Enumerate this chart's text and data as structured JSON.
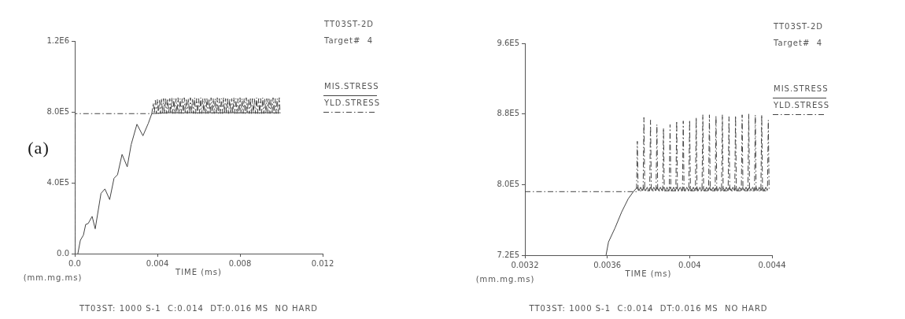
{
  "chart_data": [
    {
      "type": "line",
      "title": "TT03ST-2D",
      "subtitle": "Target#  4",
      "xlabel": "TIME (ms)",
      "annotations": [
        "(mm.mg.ms)",
        "TT03ST: 1000 S-1  C:0.014  DT:0.016 MS  NO HARD",
        "(a)"
      ],
      "xlim": [
        0,
        0.012
      ],
      "xticks": [
        {
          "value": 0,
          "label": "0.0"
        },
        0.004,
        0.008,
        0.012
      ],
      "ylim": [
        0,
        1200000
      ],
      "yticks": [
        {
          "value": 0,
          "label": "0.0"
        },
        {
          "value": 400000,
          "label": "4.0E5"
        },
        {
          "value": 800000,
          "label": "8.0E5"
        },
        {
          "value": 1200000,
          "label": "1.2E6"
        }
      ],
      "legend": "top right",
      "marker": "none",
      "series": [
        {
          "name": "MIS.STRESS",
          "color": "#444444",
          "line_style": "solid",
          "x": [
            0.00015,
            0.00027,
            0.00042,
            0.00053,
            0.00065,
            0.00084,
            0.00099,
            0.00127,
            0.00146,
            0.00169,
            0.0019,
            0.00207,
            0.00229,
            0.00254,
            0.00273,
            0.00301,
            0.0033,
            0.00356,
            0.00373,
            0.0045,
            0.0055,
            0.0065,
            0.0075,
            0.0085,
            0.0099
          ],
          "values": [
            0,
            75000,
            105000,
            165000,
            170000,
            210000,
            140000,
            340000,
            365000,
            305000,
            425000,
            445000,
            560000,
            490000,
            615000,
            730000,
            665000,
            735000,
            790000,
            795000,
            795000,
            795000,
            795000,
            795000,
            795000
          ]
        },
        {
          "name": "YLD.STRESS",
          "color": "#444444",
          "line_style": "dashed",
          "x": [
            0,
            0,
            0.00373,
            0.0038,
            0.00385,
            0.0039,
            0.00395,
            0.004,
            0.00405,
            0.0041,
            0.00415,
            0.0042,
            0.00425,
            0.0043,
            0.00435,
            0.0044,
            0.00445,
            0.0045,
            0.00455,
            0.0046,
            0.00465,
            0.0047,
            0.00475,
            0.0048,
            0.00485,
            0.0049,
            0.00495,
            0.005,
            0.00505,
            0.0051,
            0.00515,
            0.0052,
            0.00525,
            0.0053,
            0.00535,
            0.0054,
            0.00545,
            0.0055,
            0.00555,
            0.0056,
            0.00565,
            0.0057,
            0.00575,
            0.0058,
            0.00585,
            0.0059,
            0.00595,
            0.006,
            0.00605,
            0.0061,
            0.00615,
            0.0062,
            0.00625,
            0.0063,
            0.00635,
            0.0064,
            0.00645,
            0.0065,
            0.00655,
            0.0066,
            0.00665,
            0.0067,
            0.00675,
            0.0068,
            0.00685,
            0.0069,
            0.00695,
            0.007,
            0.00705,
            0.0071,
            0.00715,
            0.0072,
            0.00725,
            0.0073,
            0.00735,
            0.0074,
            0.00745,
            0.0075,
            0.00755,
            0.0076,
            0.00765,
            0.0077,
            0.00775,
            0.0078,
            0.00785,
            0.0079,
            0.00795,
            0.008,
            0.00805,
            0.0081,
            0.00815,
            0.0082,
            0.00825,
            0.0083,
            0.00835,
            0.0084,
            0.00845,
            0.0085,
            0.00855,
            0.0086,
            0.00865,
            0.0087,
            0.00875,
            0.0088,
            0.00885,
            0.0089,
            0.00895,
            0.009,
            0.00905,
            0.0091,
            0.00915,
            0.0092,
            0.00925,
            0.0093,
            0.00935,
            0.0094,
            0.00945,
            0.0095,
            0.00955,
            0.0096,
            0.00965,
            0.0097,
            0.00975,
            0.0098,
            0.00985,
            0.0099,
            0.00994
          ],
          "values": [
            0,
            790000,
            790000,
            850000,
            790000,
            865000,
            790000,
            870000,
            790000,
            870000,
            790000,
            875000,
            790000,
            875000,
            790000,
            880000,
            790000,
            875000,
            790000,
            875000,
            790000,
            880000,
            790000,
            875000,
            790000,
            875000,
            790000,
            880000,
            790000,
            875000,
            790000,
            875000,
            790000,
            880000,
            790000,
            875000,
            790000,
            875000,
            790000,
            880000,
            790000,
            875000,
            790000,
            880000,
            790000,
            875000,
            790000,
            875000,
            790000,
            880000,
            790000,
            875000,
            790000,
            875000,
            790000,
            880000,
            790000,
            875000,
            790000,
            880000,
            790000,
            875000,
            790000,
            875000,
            790000,
            880000,
            790000,
            875000,
            790000,
            875000,
            790000,
            880000,
            790000,
            875000,
            790000,
            880000,
            790000,
            875000,
            790000,
            875000,
            790000,
            880000,
            790000,
            875000,
            790000,
            875000,
            790000,
            880000,
            790000,
            875000,
            790000,
            875000,
            790000,
            880000,
            790000,
            875000,
            790000,
            880000,
            790000,
            875000,
            790000,
            875000,
            790000,
            880000,
            790000,
            875000,
            790000,
            875000,
            790000,
            880000,
            790000,
            875000,
            790000,
            875000,
            790000,
            880000,
            790000,
            875000,
            790000,
            880000,
            790000,
            875000,
            790000,
            875000,
            790000,
            880000,
            790000
          ]
        }
      ]
    },
    {
      "type": "line",
      "title": "TT03ST-2D",
      "subtitle": "Target#  4",
      "xlabel": "TIME (ms)",
      "annotations": [
        "(mm.mg.ms)",
        "TT03ST: 1000 S-1  C:0.014  DT:0.016 MS  NO HARD"
      ],
      "xlim": [
        0.0032,
        0.0044
      ],
      "xticks": [
        0.0032,
        0.0036,
        0.004,
        0.0044
      ],
      "ylim": [
        720000,
        960000
      ],
      "yticks": [
        {
          "value": 720000,
          "label": "7.2E5"
        },
        {
          "value": 800000,
          "label": "8.0E5"
        },
        {
          "value": 880000,
          "label": "8.8E5"
        },
        {
          "value": 960000,
          "label": "9.6E5"
        }
      ],
      "legend": "top right",
      "marker": "none",
      "series": [
        {
          "name": "MIS.STRESS",
          "color": "#444444",
          "line_style": "solid",
          "x": [
            0.003594,
            0.003606,
            0.003638,
            0.00367,
            0.003702,
            0.003727,
            0.003746,
            0.003754,
            0.003762,
            0.00377,
            0.003778,
            0.003786,
            0.003794,
            0.003802,
            0.00381,
            0.003818,
            0.003826,
            0.003834,
            0.003842,
            0.00385,
            0.003858,
            0.003866,
            0.003874,
            0.003882,
            0.00389,
            0.003898,
            0.003906,
            0.003914,
            0.003922,
            0.00393,
            0.003938,
            0.003946,
            0.003954,
            0.003962,
            0.00397,
            0.003978,
            0.003986,
            0.003994,
            0.004002,
            0.00401,
            0.004018,
            0.004026,
            0.004034,
            0.004042,
            0.00405,
            0.004058,
            0.004066,
            0.004074,
            0.004082,
            0.00409,
            0.004098,
            0.004106,
            0.004114,
            0.004122,
            0.00413,
            0.004138,
            0.004146,
            0.004154,
            0.004162,
            0.00417,
            0.004178,
            0.004186,
            0.004194,
            0.004202,
            0.00421,
            0.004218,
            0.004226,
            0.004234,
            0.004242,
            0.00425,
            0.004258,
            0.004266,
            0.004274,
            0.004282,
            0.00429,
            0.004298,
            0.004306,
            0.004314,
            0.004322,
            0.00433,
            0.004338,
            0.004346,
            0.004354,
            0.004362,
            0.00437,
            0.004378
          ],
          "values": [
            720000,
            735000,
            751000,
            769000,
            784000,
            792000,
            797000,
            793000,
            797000,
            793000,
            797000,
            793000,
            797000,
            793000,
            797000,
            793000,
            797000,
            793000,
            797000,
            793000,
            797000,
            793000,
            797000,
            793000,
            797000,
            793000,
            797000,
            793000,
            797000,
            793000,
            797000,
            793000,
            797000,
            793000,
            797000,
            793000,
            797000,
            793000,
            797000,
            793000,
            797000,
            793000,
            797000,
            793000,
            797000,
            793000,
            797000,
            793000,
            797000,
            793000,
            797000,
            793000,
            797000,
            793000,
            797000,
            793000,
            797000,
            793000,
            797000,
            793000,
            797000,
            793000,
            797000,
            793000,
            797000,
            793000,
            797000,
            793000,
            797000,
            793000,
            797000,
            793000,
            797000,
            793000,
            797000,
            793000,
            797000,
            793000,
            797000,
            793000,
            797000,
            793000,
            797000,
            793000,
            797000,
            793000
          ]
        },
        {
          "name": "YLD.STRESS",
          "color": "#444444",
          "line_style": "dashed",
          "x": [
            0.0032,
            0.003742,
            0.003746,
            0.00375,
            0.003774,
            0.003778,
            0.003782,
            0.003806,
            0.00381,
            0.003814,
            0.003837,
            0.003841,
            0.003845,
            0.003869,
            0.003873,
            0.003877,
            0.003901,
            0.003905,
            0.003909,
            0.003933,
            0.003937,
            0.003941,
            0.003965,
            0.003969,
            0.003973,
            0.003996,
            0.004,
            0.004004,
            0.004028,
            0.004032,
            0.004036,
            0.00406,
            0.004064,
            0.004068,
            0.004092,
            0.004096,
            0.0041,
            0.004124,
            0.004128,
            0.004132,
            0.004155,
            0.004159,
            0.004163,
            0.004187,
            0.004191,
            0.004195,
            0.004219,
            0.004223,
            0.004227,
            0.004251,
            0.004255,
            0.004259,
            0.004283,
            0.004287,
            0.004291,
            0.004315,
            0.004319,
            0.004323,
            0.004346,
            0.00435,
            0.004354,
            0.004378,
            0.004382,
            0.004386
          ],
          "values": [
            792000,
            792000,
            849000,
            793000,
            793000,
            876000,
            793000,
            793000,
            873000,
            793000,
            793000,
            868000,
            793000,
            793000,
            864000,
            793000,
            793000,
            868000,
            793000,
            793000,
            872000,
            793000,
            793000,
            872000,
            793000,
            793000,
            873000,
            793000,
            793000,
            876000,
            793000,
            793000,
            879000,
            793000,
            793000,
            879000,
            793000,
            793000,
            878000,
            793000,
            793000,
            879000,
            793000,
            793000,
            877000,
            793000,
            793000,
            878000,
            793000,
            793000,
            879000,
            793000,
            793000,
            880000,
            793000,
            793000,
            879000,
            793000,
            793000,
            879000,
            793000,
            793000,
            873000,
            793000
          ]
        }
      ]
    }
  ]
}
